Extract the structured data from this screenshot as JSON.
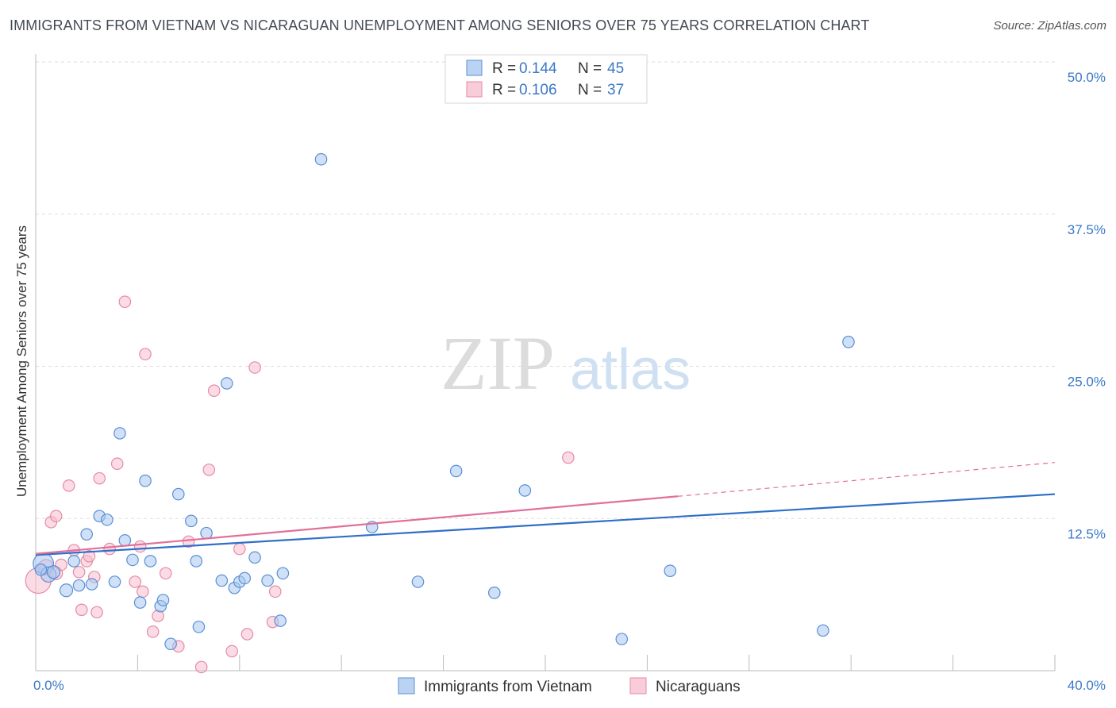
{
  "title": "IMMIGRANTS FROM VIETNAM VS NICARAGUAN UNEMPLOYMENT AMONG SENIORS OVER 75 YEARS CORRELATION CHART",
  "source": "Source: ZipAtlas.com",
  "watermark": {
    "zip": "ZIP",
    "atlas": "atlas"
  },
  "colors": {
    "blue_fill": "#a9c8f0",
    "blue_stroke": "#5a8fd6",
    "blue_line": "#2f6fc9",
    "pink_fill": "#f7bfd0",
    "pink_stroke": "#e68aa8",
    "pink_line": "#e0709a",
    "axis_text": "#3a78c8",
    "grid": "#dddddd"
  },
  "legend_top": [
    {
      "r_label": "R = ",
      "r_value": "0.144",
      "n_label": "N = ",
      "n_value": "45",
      "series": "blue"
    },
    {
      "r_label": "R = ",
      "r_value": "0.106",
      "n_label": "N = ",
      "n_value": "37",
      "series": "pink"
    }
  ],
  "chart_data": {
    "type": "scatter",
    "title": "IMMIGRANTS FROM VIETNAM VS NICARAGUAN UNEMPLOYMENT AMONG SENIORS OVER 75 YEARS CORRELATION CHART",
    "xlabel": "",
    "ylabel": "Unemployment Among Seniors over 75 years",
    "xlim": [
      0,
      40
    ],
    "ylim": [
      0,
      50
    ],
    "x_tick_labels": [
      "0.0%",
      "40.0%"
    ],
    "y_ticks": [
      12.5,
      25.0,
      37.5,
      50.0
    ],
    "y_tick_labels": [
      "12.5%",
      "25.0%",
      "37.5%",
      "50.0%"
    ],
    "grid": true,
    "legend_position": "bottom",
    "series": [
      {
        "name": "Immigrants from Vietnam",
        "color": "blue",
        "trend": {
          "x": [
            0,
            40
          ],
          "y": [
            9.5,
            14.5
          ],
          "dashed_from": null
        },
        "points": [
          [
            0.3,
            8.8,
            1.6
          ],
          [
            0.5,
            7.9,
            1.2
          ],
          [
            0.7,
            8.1,
            1.0
          ],
          [
            1.2,
            6.6,
            1.0
          ],
          [
            1.5,
            9.0,
            0.9
          ],
          [
            1.7,
            7.0,
            0.9
          ],
          [
            2.0,
            11.2,
            0.9
          ],
          [
            2.2,
            7.1,
            0.9
          ],
          [
            2.5,
            12.7,
            0.9
          ],
          [
            2.8,
            12.4,
            0.9
          ],
          [
            3.1,
            7.3,
            0.9
          ],
          [
            3.3,
            19.5,
            0.9
          ],
          [
            3.5,
            10.7,
            0.9
          ],
          [
            3.8,
            9.1,
            0.9
          ],
          [
            4.1,
            5.6,
            0.9
          ],
          [
            4.3,
            15.6,
            0.9
          ],
          [
            4.5,
            9.0,
            0.9
          ],
          [
            4.9,
            5.3,
            0.9
          ],
          [
            5.0,
            5.8,
            0.9
          ],
          [
            5.3,
            2.2,
            0.9
          ],
          [
            5.6,
            14.5,
            0.9
          ],
          [
            6.1,
            12.3,
            0.9
          ],
          [
            6.3,
            9.0,
            0.9
          ],
          [
            6.4,
            3.6,
            0.9
          ],
          [
            6.7,
            11.3,
            0.9
          ],
          [
            7.3,
            7.4,
            0.9
          ],
          [
            7.5,
            23.6,
            0.9
          ],
          [
            7.8,
            6.8,
            0.9
          ],
          [
            8.0,
            7.3,
            0.9
          ],
          [
            8.2,
            7.6,
            0.9
          ],
          [
            8.6,
            9.3,
            0.9
          ],
          [
            9.1,
            7.4,
            0.9
          ],
          [
            9.6,
            4.1,
            0.9
          ],
          [
            9.7,
            8.0,
            0.9
          ],
          [
            11.2,
            42.0,
            0.9
          ],
          [
            13.2,
            11.8,
            0.9
          ],
          [
            15.0,
            7.3,
            0.9
          ],
          [
            16.5,
            16.4,
            0.9
          ],
          [
            18.0,
            6.4,
            0.9
          ],
          [
            19.2,
            14.8,
            0.9
          ],
          [
            23.0,
            2.6,
            0.9
          ],
          [
            24.9,
            8.2,
            0.9
          ],
          [
            30.9,
            3.3,
            0.9
          ],
          [
            31.9,
            27.0,
            0.9
          ],
          [
            0.2,
            8.3,
            0.9
          ]
        ]
      },
      {
        "name": "Nicaraguans",
        "color": "pink",
        "trend": {
          "x": [
            0,
            40
          ],
          "y": [
            9.6,
            17.1
          ],
          "dashed_from": 25.2
        },
        "points": [
          [
            0.1,
            7.4,
            2.0
          ],
          [
            0.4,
            8.5,
            1.2
          ],
          [
            0.8,
            8.0,
            1.0
          ],
          [
            1.0,
            8.7,
            0.9
          ],
          [
            0.6,
            12.2,
            0.9
          ],
          [
            0.8,
            12.7,
            0.9
          ],
          [
            1.3,
            15.2,
            0.9
          ],
          [
            1.5,
            9.9,
            0.9
          ],
          [
            1.7,
            8.1,
            0.9
          ],
          [
            1.8,
            5.0,
            0.9
          ],
          [
            2.0,
            9.0,
            0.9
          ],
          [
            2.1,
            9.4,
            0.9
          ],
          [
            2.3,
            7.7,
            0.9
          ],
          [
            2.4,
            4.8,
            0.9
          ],
          [
            2.5,
            15.8,
            0.9
          ],
          [
            2.9,
            10.0,
            0.9
          ],
          [
            3.2,
            17.0,
            0.9
          ],
          [
            3.5,
            30.3,
            0.9
          ],
          [
            3.9,
            7.3,
            0.9
          ],
          [
            4.1,
            10.2,
            0.9
          ],
          [
            4.2,
            6.5,
            0.9
          ],
          [
            4.3,
            26.0,
            0.9
          ],
          [
            4.6,
            3.2,
            0.9
          ],
          [
            4.8,
            4.5,
            0.9
          ],
          [
            5.1,
            8.0,
            0.9
          ],
          [
            5.6,
            2.0,
            0.9
          ],
          [
            6.0,
            10.6,
            0.9
          ],
          [
            6.5,
            0.3,
            0.9
          ],
          [
            6.8,
            16.5,
            0.9
          ],
          [
            7.0,
            23.0,
            0.9
          ],
          [
            7.7,
            1.6,
            0.9
          ],
          [
            8.0,
            10.0,
            0.9
          ],
          [
            8.3,
            3.0,
            0.9
          ],
          [
            8.6,
            24.9,
            0.9
          ],
          [
            9.3,
            4.0,
            0.9
          ],
          [
            9.4,
            6.5,
            0.9
          ],
          [
            20.9,
            17.5,
            0.9
          ]
        ]
      }
    ]
  }
}
